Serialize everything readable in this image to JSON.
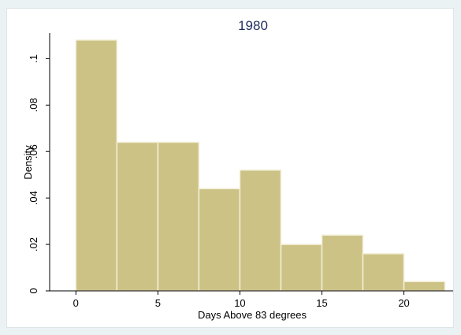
{
  "chart_data": {
    "type": "bar",
    "title": "1980",
    "xlabel": "Days Above 83 degrees",
    "ylabel": "Density",
    "bin_edges": [
      0,
      2.5,
      5,
      7.5,
      10,
      12.5,
      15,
      17.5,
      20,
      22.5
    ],
    "values": [
      0.108,
      0.064,
      0.064,
      0.044,
      0.052,
      0.02,
      0.024,
      0.016,
      0.004
    ],
    "xlim": [
      -1.6,
      23
    ],
    "ylim": [
      0,
      0.111
    ],
    "x_ticks": [
      0,
      5,
      10,
      15,
      20
    ],
    "x_tick_labels": [
      "0",
      "5",
      "10",
      "15",
      "20"
    ],
    "y_ticks": [
      0,
      0.02,
      0.04,
      0.06,
      0.08,
      0.1
    ],
    "y_tick_labels": [
      "0",
      ".02",
      ".04",
      ".06",
      ".08",
      ".1"
    ],
    "grid": false,
    "colors": {
      "bar_fill": "#cdc286",
      "bar_stroke": "#f2efd8",
      "title": "#1f2d5c",
      "outer_background": "#eaf2f3",
      "plot_background": "#ffffff"
    }
  }
}
